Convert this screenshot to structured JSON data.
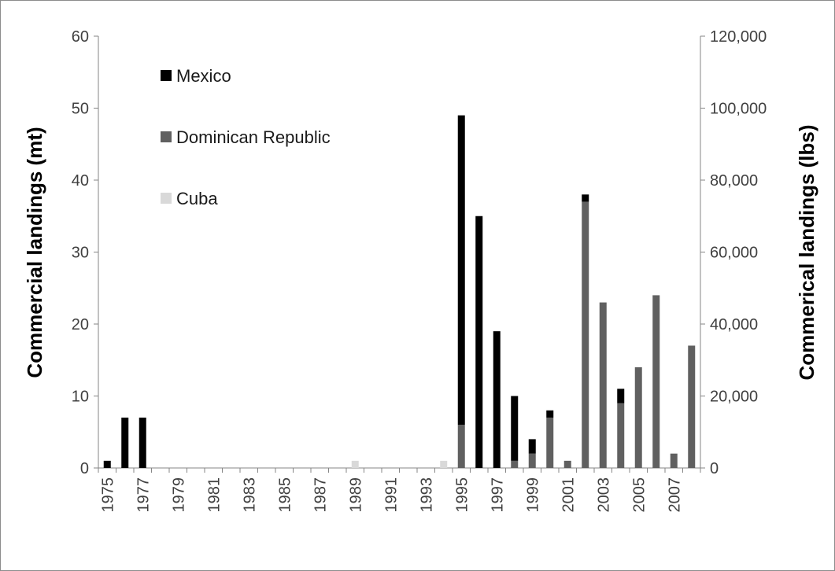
{
  "chart_data": {
    "type": "bar",
    "stacked": true,
    "y_left_label": "Commercial landings (mt)",
    "y_right_label": "Commerical landings (lbs)",
    "y_left_lim": [
      0,
      60
    ],
    "y_left_ticks": [
      "0",
      "10",
      "20",
      "30",
      "40",
      "50",
      "60"
    ],
    "y_right_lim": [
      0,
      120000
    ],
    "y_right_ticks": [
      "0",
      "20,000",
      "40,000",
      "60,000",
      "80,000",
      "100,000",
      "120,000"
    ],
    "categories": [
      "1975",
      "1976",
      "1977",
      "1978",
      "1979",
      "1980",
      "1981",
      "1982",
      "1983",
      "1984",
      "1985",
      "1986",
      "1987",
      "1988",
      "1989",
      "1990",
      "1991",
      "1992",
      "1993",
      "1994",
      "1995",
      "1996",
      "1997",
      "1998",
      "1999",
      "2000",
      "2001",
      "2002",
      "2003",
      "2004",
      "2005",
      "2006",
      "2007",
      "2008"
    ],
    "x_tick_labels": [
      "1975",
      "",
      "1977",
      "",
      "1979",
      "",
      "1981",
      "",
      "1983",
      "",
      "1985",
      "",
      "1987",
      "",
      "1989",
      "",
      "1991",
      "",
      "1993",
      "",
      "1995",
      "",
      "1997",
      "",
      "1999",
      "",
      "2001",
      "",
      "2003",
      "",
      "2005",
      "",
      "2007",
      ""
    ],
    "grid": false,
    "legend_position": "top-left",
    "series": [
      {
        "name": "Cuba",
        "color": "#d9d9d9",
        "values": [
          0,
          0,
          0,
          0,
          0,
          0,
          0,
          0,
          0,
          0,
          0,
          0,
          0,
          0,
          1,
          0,
          0,
          0,
          0,
          1,
          0,
          0,
          0,
          0,
          0,
          0,
          0,
          0,
          0,
          0,
          0,
          0,
          0,
          0
        ]
      },
      {
        "name": "Dominican Republic",
        "color": "#606060",
        "values": [
          0,
          0,
          0,
          0,
          0,
          0,
          0,
          0,
          0,
          0,
          0,
          0,
          0,
          0,
          0,
          0,
          0,
          0,
          0,
          0,
          6,
          0,
          0,
          1,
          2,
          7,
          1,
          37,
          23,
          9,
          14,
          24,
          2,
          17
        ]
      },
      {
        "name": "Mexico",
        "color": "#000000",
        "values": [
          1,
          7,
          7,
          0,
          0,
          0,
          0,
          0,
          0,
          0,
          0,
          0,
          0,
          0,
          0,
          0,
          0,
          0,
          0,
          0,
          43,
          35,
          19,
          9,
          2,
          1,
          0,
          1,
          0,
          2,
          0,
          0,
          0,
          0
        ]
      }
    ],
    "legend_order": [
      "Mexico",
      "Dominican Republic",
      "Cuba"
    ]
  }
}
